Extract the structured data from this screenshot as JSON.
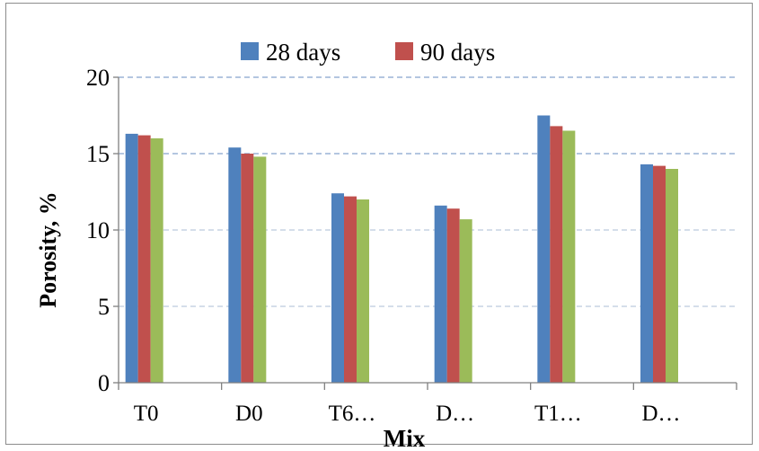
{
  "chart_data": {
    "type": "bar",
    "title": "",
    "xlabel": "Mix",
    "ylabel": "Porosity, %",
    "categories": [
      "T0",
      "D0",
      "T6…",
      "D…",
      "T1…",
      "D…"
    ],
    "series": [
      {
        "name": "28 days",
        "color": "#4F81BD",
        "values": [
          16.3,
          15.4,
          12.4,
          11.6,
          17.5,
          14.3
        ]
      },
      {
        "name": "90 days",
        "color": "#C0504D",
        "values": [
          16.2,
          15.0,
          12.2,
          11.4,
          16.8,
          14.2
        ]
      },
      {
        "name": "",
        "color": "#9BBB59",
        "values": [
          16.0,
          14.8,
          12.0,
          10.7,
          16.5,
          14.0
        ]
      }
    ],
    "ylim": [
      0,
      20
    ],
    "yticks": [
      0,
      5,
      10,
      15,
      20
    ],
    "grid": true,
    "legend": "top"
  }
}
